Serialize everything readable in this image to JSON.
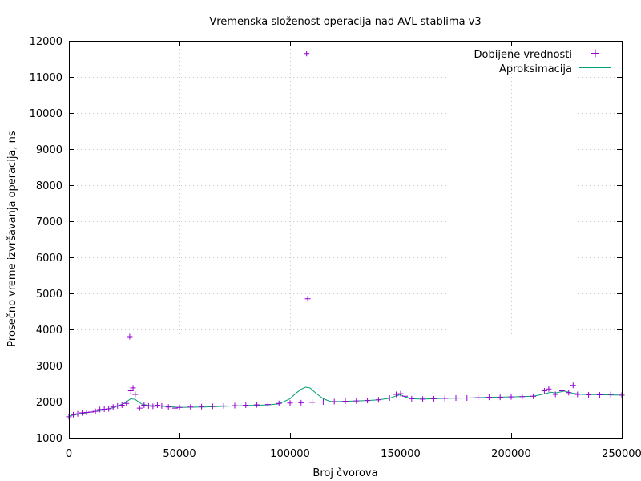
{
  "chart_data": {
    "type": "scatter",
    "title": "Vremenska složenost operacija nad AVL stablima v3",
    "xlabel": "Broj čvorova",
    "ylabel": "Prosečno vreme izvršavanja operacija, ns",
    "xlim": [
      0,
      250000
    ],
    "ylim": [
      1000,
      12000
    ],
    "x_ticks": [
      0,
      50000,
      100000,
      150000,
      200000,
      250000
    ],
    "y_ticks": [
      1000,
      2000,
      3000,
      4000,
      5000,
      6000,
      7000,
      8000,
      9000,
      10000,
      11000,
      12000
    ],
    "grid": true,
    "legend_position": "top-right",
    "colors": {
      "points": "#9400d3",
      "line": "#009e73"
    },
    "series": [
      {
        "name": "Dobijene vrednosti",
        "style": "points",
        "x": [
          0,
          2000,
          4000,
          6000,
          8000,
          10000,
          12000,
          14000,
          16000,
          18000,
          20000,
          22000,
          24000,
          26000,
          27500,
          28000,
          29000,
          30000,
          32000,
          34000,
          36000,
          38000,
          40000,
          42000,
          45000,
          48000,
          50000,
          55000,
          60000,
          65000,
          70000,
          75000,
          80000,
          85000,
          90000,
          95000,
          100000,
          105000,
          107500,
          108000,
          110000,
          115000,
          120000,
          125000,
          130000,
          135000,
          140000,
          145000,
          148000,
          150000,
          152000,
          155000,
          160000,
          165000,
          170000,
          175000,
          180000,
          185000,
          190000,
          195000,
          200000,
          205000,
          210000,
          215000,
          217000,
          220000,
          223000,
          226000,
          228000,
          230000,
          235000,
          240000,
          245000,
          250000
        ],
        "y": [
          1580,
          1640,
          1660,
          1690,
          1700,
          1710,
          1730,
          1780,
          1790,
          1800,
          1850,
          1880,
          1900,
          1950,
          3800,
          2300,
          2380,
          2200,
          1820,
          1900,
          1880,
          1870,
          1900,
          1880,
          1850,
          1820,
          1840,
          1850,
          1860,
          1870,
          1880,
          1890,
          1900,
          1910,
          1920,
          1950,
          1960,
          1970,
          11650,
          4850,
          1980,
          1990,
          2000,
          2010,
          2020,
          2030,
          2050,
          2100,
          2200,
          2220,
          2150,
          2080,
          2070,
          2080,
          2090,
          2100,
          2100,
          2110,
          2120,
          2120,
          2130,
          2140,
          2150,
          2300,
          2350,
          2200,
          2300,
          2250,
          2450,
          2200,
          2190,
          2190,
          2200,
          2180
        ]
      },
      {
        "name": "Aproksimacija",
        "style": "line",
        "x": [
          0,
          5000,
          10000,
          15000,
          20000,
          25000,
          28000,
          30000,
          33000,
          36000,
          40000,
          45000,
          50000,
          60000,
          70000,
          80000,
          90000,
          95000,
          100000,
          103000,
          105000,
          107000,
          109000,
          112000,
          115000,
          118000,
          120000,
          125000,
          130000,
          135000,
          140000,
          145000,
          148000,
          150000,
          152000,
          155000,
          160000,
          170000,
          180000,
          190000,
          200000,
          210000,
          214000,
          218000,
          220000,
          224000,
          228000,
          232000,
          240000,
          250000
        ],
        "y": [
          1600,
          1660,
          1710,
          1760,
          1830,
          1950,
          2080,
          2060,
          1930,
          1890,
          1880,
          1860,
          1840,
          1850,
          1870,
          1890,
          1910,
          1940,
          2080,
          2250,
          2340,
          2400,
          2380,
          2220,
          2080,
          2010,
          2000,
          2010,
          2020,
          2030,
          2050,
          2090,
          2160,
          2190,
          2130,
          2080,
          2070,
          2090,
          2100,
          2120,
          2130,
          2150,
          2200,
          2260,
          2240,
          2290,
          2230,
          2200,
          2190,
          2180
        ]
      }
    ]
  }
}
